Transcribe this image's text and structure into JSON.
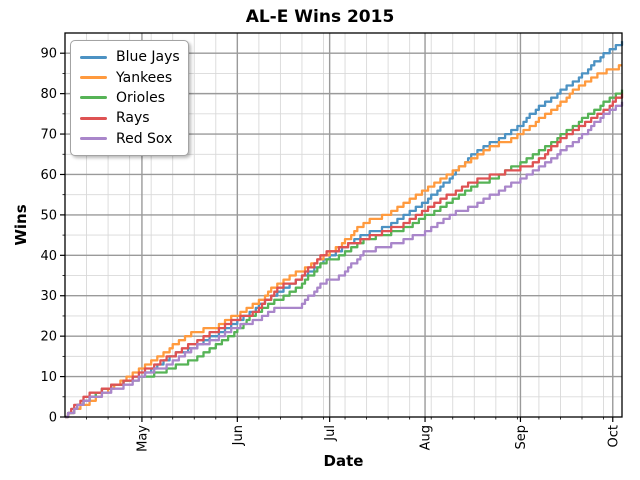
{
  "chart_data": {
    "type": "line",
    "title": "AL-E Wins 2015",
    "xlabel": "Date",
    "ylabel": "Wins",
    "x_tick_labels": [
      "May",
      "Jun",
      "Jul",
      "Aug",
      "Sep",
      "Oct"
    ],
    "x_tick_days": [
      25,
      56,
      86,
      117,
      148,
      178
    ],
    "y_ticks": [
      0,
      10,
      20,
      30,
      40,
      50,
      60,
      70,
      80,
      90
    ],
    "ylim": [
      0,
      95
    ],
    "x_range_days": 181,
    "grid": {
      "major": true,
      "minor": true,
      "minor_x_interval_days": 7,
      "minor_y_interval": 5
    },
    "legend": {
      "position": "upper left",
      "entries": [
        "Blue Jays",
        "Yankees",
        "Orioles",
        "Rays",
        "Red Sox"
      ]
    },
    "sample_dates": [
      "Apr 6",
      "Apr 12",
      "Apr 19",
      "Apr 26",
      "May 3",
      "May 10",
      "May 17",
      "May 24",
      "May 31",
      "Jun 7",
      "Jun 14",
      "Jun 21",
      "Jun 28",
      "Jul 5",
      "Jul 12",
      "Jul 19",
      "Jul 26",
      "Aug 2",
      "Aug 9",
      "Aug 16",
      "Aug 23",
      "Aug 30",
      "Sep 6",
      "Sep 13",
      "Sep 20",
      "Sep 27",
      "Oct 4"
    ],
    "sample_days": [
      0,
      6,
      13,
      20,
      27,
      34,
      41,
      48,
      55,
      62,
      69,
      76,
      83,
      90,
      97,
      104,
      111,
      118,
      125,
      132,
      139,
      146,
      153,
      160,
      167,
      174,
      181
    ],
    "series": [
      {
        "name": "Blue Jays",
        "color": "#4C92C3",
        "values": [
          0,
          4,
          7,
          9,
          11,
          15,
          17,
          20,
          23,
          27,
          31,
          34,
          38,
          42,
          45,
          47,
          50,
          54,
          59,
          65,
          68,
          71,
          76,
          80,
          84,
          89,
          93
        ]
      },
      {
        "name": "Yankees",
        "color": "#FF9A3E",
        "values": [
          0,
          3,
          6,
          10,
          13,
          17,
          21,
          22,
          25,
          28,
          33,
          36,
          39,
          43,
          48,
          50,
          53,
          57,
          60,
          64,
          67,
          69,
          73,
          77,
          82,
          85,
          87
        ]
      },
      {
        "name": "Orioles",
        "color": "#56B356",
        "values": [
          0,
          4,
          7,
          9,
          10,
          12,
          14,
          17,
          21,
          26,
          29,
          32,
          38,
          40,
          44,
          45,
          47,
          50,
          53,
          57,
          59,
          62,
          65,
          69,
          73,
          77,
          81
        ]
      },
      {
        "name": "Rays",
        "color": "#DE5253",
        "values": [
          0,
          5,
          7,
          9,
          12,
          15,
          18,
          21,
          24,
          26,
          32,
          34,
          40,
          42,
          44,
          46,
          48,
          52,
          55,
          58,
          60,
          61,
          63,
          68,
          72,
          75,
          80
        ]
      },
      {
        "name": "Red Sox",
        "color": "#A986CA",
        "values": [
          0,
          4,
          6,
          8,
          11,
          13,
          17,
          19,
          22,
          24,
          27,
          27,
          33,
          35,
          41,
          42,
          44,
          46,
          50,
          52,
          55,
          58,
          61,
          65,
          69,
          74,
          78
        ]
      }
    ],
    "final_wins": {
      "Blue Jays": 93,
      "Yankees": 87,
      "Orioles": 81,
      "Rays": 80,
      "Red Sox": 78
    }
  }
}
